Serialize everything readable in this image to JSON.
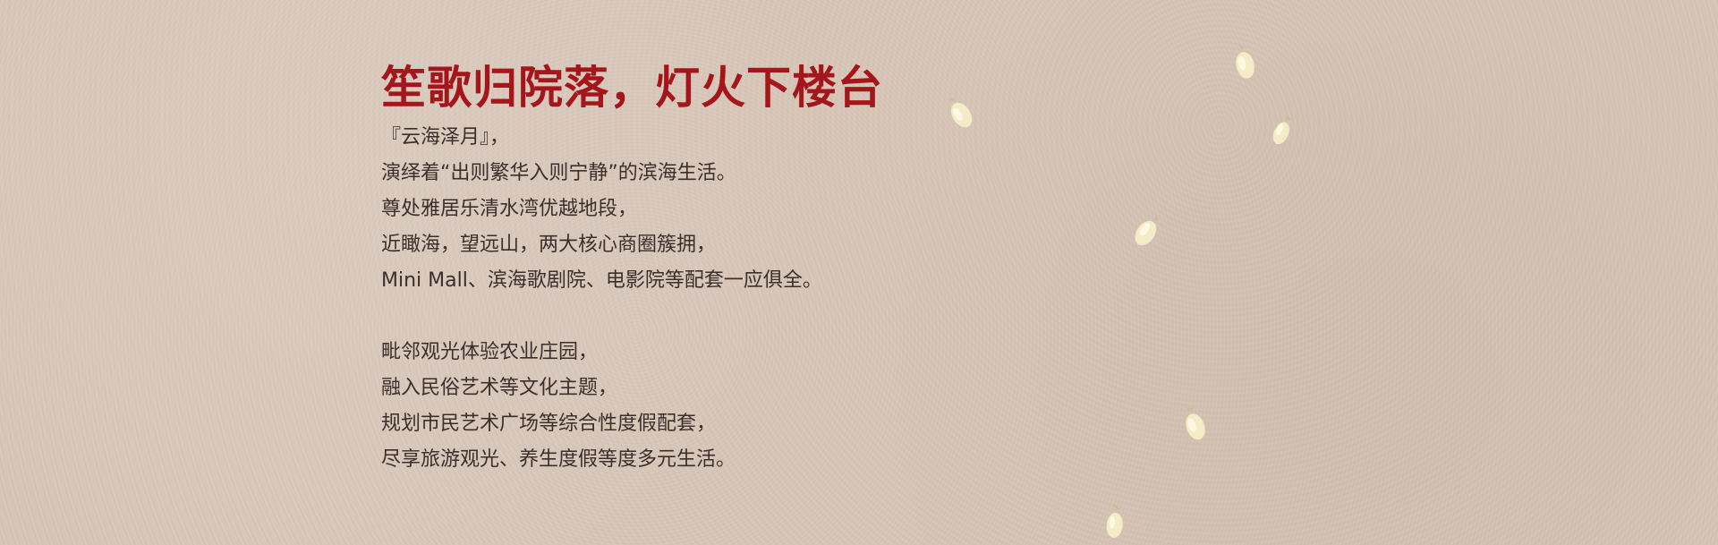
{
  "article": {
    "title": "笙歌归院落，灯火下楼台",
    "paragraphs": [
      {
        "lines": [
          "『云海泽月』，",
          "演绎着“出则繁华入则宁静”的滨海生活。",
          "尊处雅居乐清水湾优越地段，",
          "近瞰海，望远山，两大核心商圈簇拥，",
          "Mini Mall、滨海歌剧院、电影院等配套一应俱全。"
        ]
      },
      {
        "lines": [
          "毗邻观光体验农业庄园，",
          "融入民俗艺术等文化主题，",
          "规划市民艺术广场等综合性度假配套，",
          "尽享旅游观光、养生度假等度多元生活。"
        ]
      }
    ]
  },
  "decoration": {
    "background_color": "#d8c7b9",
    "title_color": "#a4161c",
    "text_color": "#3a2f2a",
    "petal_color": "#f3ecc6",
    "petal_icon": "petal-icon"
  }
}
